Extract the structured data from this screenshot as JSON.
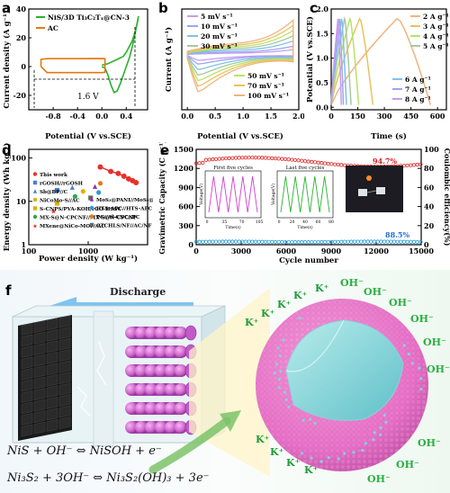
{
  "panel_labels": [
    "a",
    "b",
    "c",
    "d",
    "e",
    "f"
  ],
  "chart_data": [
    {
      "id": "a",
      "type": "line",
      "xlabel": "Potential (V vs.SCE)",
      "ylabel": "Current density (A g⁻¹)",
      "xlim": [
        -1.2,
        0.75
      ],
      "ylim": [
        -30,
        40
      ],
      "xticks": [
        -0.8,
        -0.4,
        0.0,
        0.4
      ],
      "yticks": [
        -20,
        0,
        20,
        40
      ],
      "annotation": "1.6 V",
      "series": [
        {
          "name": "NiS/3D Ti₃C₂Tₓ@CN-3",
          "color": "#27b22a",
          "x": [
            0.0,
            0.05,
            0.1,
            0.15,
            0.2,
            0.25,
            0.3,
            0.35,
            0.4,
            0.45,
            0.5,
            0.55,
            0.58,
            0.6,
            0.55,
            0.5,
            0.45,
            0.4,
            0.35,
            0.3,
            0.25,
            0.2,
            0.15,
            0.1,
            0.05,
            0.0
          ],
          "y": [
            1,
            1.5,
            2,
            3,
            4,
            5,
            6,
            7,
            10,
            14,
            18,
            25,
            30,
            35,
            24,
            14,
            6,
            0,
            -6,
            -12,
            -17,
            -18,
            -13,
            -6,
            -1,
            0
          ]
        },
        {
          "name": "AC",
          "color": "#e07a10",
          "x": [
            -1.0,
            -1.0,
            -0.9,
            -0.5,
            0.0,
            0.05,
            0.05,
            0.0,
            -0.5,
            -0.9,
            -1.0
          ],
          "y": [
            0,
            5,
            5.5,
            5.5,
            5.6,
            5.5,
            -4,
            -4.2,
            -4.2,
            -4.2,
            0
          ]
        }
      ]
    },
    {
      "id": "b",
      "type": "line",
      "xlabel": "Potential (V vs.SCE)",
      "ylabel": "Current (A g⁻¹)",
      "xlim": [
        -0.1,
        2.0
      ],
      "ylim": [
        -30,
        25
      ],
      "xticks": [
        0.0,
        0.5,
        1.0,
        1.5,
        2.0
      ],
      "series": [
        {
          "name": "5 mV s⁻¹",
          "color": "#c79cf0",
          "scale": 0.15
        },
        {
          "name": "10 mV s⁻¹",
          "color": "#9ea5f5",
          "scale": 0.25
        },
        {
          "name": "20 mV s⁻¹",
          "color": "#7fc2e8",
          "scale": 0.4
        },
        {
          "name": "30 mV s⁻¹",
          "color": "#a8c7a0",
          "scale": 0.55
        },
        {
          "name": "50 mV s⁻¹",
          "color": "#b6e36a",
          "scale": 0.7
        },
        {
          "name": "70 mV s⁻¹",
          "color": "#e8c35a",
          "scale": 0.85
        },
        {
          "name": "100 mV s⁻¹",
          "color": "#f2b27e",
          "scale": 1.0
        }
      ]
    },
    {
      "id": "c",
      "type": "line",
      "xlabel": "Time (s)",
      "ylabel": "Potential (V vs.SCE)",
      "xlim": [
        0,
        650
      ],
      "ylim": [
        -0.05,
        2.0
      ],
      "xticks": [
        0,
        150,
        300,
        450,
        600
      ],
      "yticks": [
        0.0,
        0.5,
        1.0,
        1.5,
        2.0
      ],
      "series": [
        {
          "name": "2 A g⁻¹",
          "color": "#f2b27e",
          "charge_end": 370,
          "total": 560
        },
        {
          "name": "3 A g⁻¹",
          "color": "#e8c35a",
          "charge_end": 160,
          "total": 235
        },
        {
          "name": "4 A g⁻¹",
          "color": "#b6e36a",
          "charge_end": 105,
          "total": 155
        },
        {
          "name": "5 A g⁻¹",
          "color": "#a8c7a0",
          "charge_end": 75,
          "total": 112
        },
        {
          "name": "6 A g⁻¹",
          "color": "#7fc2e8",
          "charge_end": 58,
          "total": 86
        },
        {
          "name": "7 A g⁻¹",
          "color": "#9ea5f5",
          "charge_end": 46,
          "total": 69
        },
        {
          "name": "8 A g⁻¹",
          "color": "#c79cf0",
          "charge_end": 38,
          "total": 57
        }
      ]
    },
    {
      "id": "d",
      "type": "scatter",
      "log_axes": true,
      "xlabel": "Power density (W kg⁻¹)",
      "ylabel": "Energy density (Wh kg⁻¹)",
      "xticks": [
        100,
        1000
      ],
      "yticks": [
        1,
        10,
        100
      ],
      "this_work": {
        "name": "This work",
        "color": "#e8302a",
        "x": [
          1600,
          2400,
          3200,
          4000,
          4800,
          5600,
          6400
        ],
        "y": [
          62,
          49,
          44,
          38,
          33,
          30,
          27
        ]
      },
      "others": [
        {
          "name": "rGOSH//rGOSH",
          "color": "#4a7fd6",
          "shape": "square",
          "x": 300,
          "y": 18
        },
        {
          "name": "Sb@BP//C",
          "color": "#4a7fd6",
          "shape": "triangle",
          "x": 540,
          "y": 21
        },
        {
          "name": "NiCoMo-S//AC",
          "color": "#d6b300",
          "shape": "circle",
          "x": 820,
          "y": 17
        },
        {
          "name": "S-CNPS/PVA-KOH/rGO-HSSC",
          "color": "#d6b300",
          "shape": "square",
          "x": 300,
          "y": 9
        },
        {
          "name": "MX-S@N-CPCNF//MX-S@N-CPCNF",
          "color": "#2aa84a",
          "shape": "circle",
          "x": 600,
          "y": 13
        },
        {
          "name": "MXene@NiCo-MOF//AC",
          "color": "#e8302a",
          "shape": "star",
          "x": 260,
          "y": 6
        },
        {
          "name": "MoS₂@PANI//MoS₂@PANI",
          "color": "#8b2fb0",
          "shape": "triangle",
          "x": 1300,
          "y": 22
        },
        {
          "name": "HTS-APC//HTS-APC",
          "color": "#2a9ad6",
          "shape": "circle",
          "x": 1500,
          "y": 16
        },
        {
          "name": "PC//Al-CNC//PC",
          "color": "#e07a10",
          "shape": "circle",
          "x": 1600,
          "y": 26
        },
        {
          "name": "CTCHLS/NF//AC/NF",
          "color": "#666666",
          "shape": "square",
          "x": 1100,
          "y": 12
        }
      ]
    },
    {
      "id": "e",
      "type": "scatter",
      "xlabel": "Cycle number",
      "ylabel": "Gravimetric Capacity (C g⁻¹)",
      "ylabel_right": "Coulombic efficiency(%)",
      "xlim": [
        0,
        15000
      ],
      "ylim": [
        0,
        1500
      ],
      "ylim_right": [
        0,
        100
      ],
      "xticks": [
        0,
        3000,
        6000,
        9000,
        12000,
        15000
      ],
      "yticks": [
        0,
        300,
        600,
        900,
        1200,
        1500
      ],
      "yticks_right": [
        0,
        20,
        40,
        60,
        80,
        100
      ],
      "capacity_retention": "94.7%",
      "coulombic_efficiency": "88.5%",
      "inset_first": {
        "title": "First five cycles",
        "xlabel": "Time(s)",
        "ylabel": "Voltage(V)",
        "xticks": [
          0,
          35,
          70,
          105
        ]
      },
      "inset_last": {
        "title": "Last five cycles",
        "xlabel": "Time(s)",
        "ylabel": "Voltage(V)",
        "xticks": [
          0,
          20,
          40,
          60,
          80
        ]
      }
    }
  ],
  "panel_f": {
    "discharge_label": "Discharge",
    "ion_labels": [
      "K⁺",
      "K⁺",
      "K⁺",
      "K⁺",
      "K⁺",
      "OH⁻",
      "OH⁻",
      "OH⁻",
      "OH⁻",
      "OH⁻",
      "OH⁻",
      "K⁺",
      "K⁺",
      "K⁺",
      "K⁺",
      "OH⁻",
      "OH⁻",
      "OH⁻"
    ],
    "equation_1": "NiS + OH⁻ ⇔ NiSOH + e⁻",
    "equation_2": "Ni₃S₂ + 3OH⁻ ⇔ Ni₃S₂(OH)₃ + 3e⁻"
  }
}
